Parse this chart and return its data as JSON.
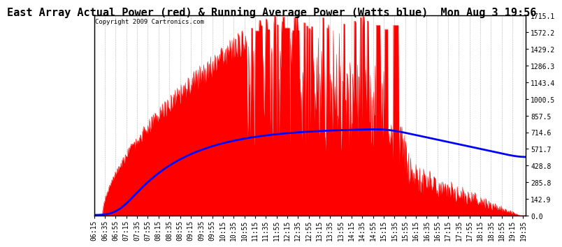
{
  "title": "East Array Actual Power (red) & Running Average Power (Watts blue)  Mon Aug 3 19:56",
  "copyright": "Copyright 2009 Cartronics.com",
  "ylabel_right_values": [
    1715.1,
    1572.2,
    1429.2,
    1286.3,
    1143.4,
    1000.5,
    857.5,
    714.6,
    571.7,
    428.8,
    285.8,
    142.9,
    0.0
  ],
  "ymax": 1715.1,
  "ymin": 0.0,
  "background_color": "#ffffff",
  "plot_bg_color": "#ffffff",
  "grid_color": "#aaaaaa",
  "fill_color": "#ff0000",
  "line_color": "#ff0000",
  "avg_line_color": "#0000ff",
  "title_fontsize": 11,
  "copyright_fontsize": 6.5,
  "tick_label_fontsize": 7,
  "x_start_min": 375,
  "x_end_min": 1180,
  "x_interval_min": 20,
  "avg_peak_value": 750,
  "avg_peak_time_min": 915,
  "avg_start_time_min": 420
}
